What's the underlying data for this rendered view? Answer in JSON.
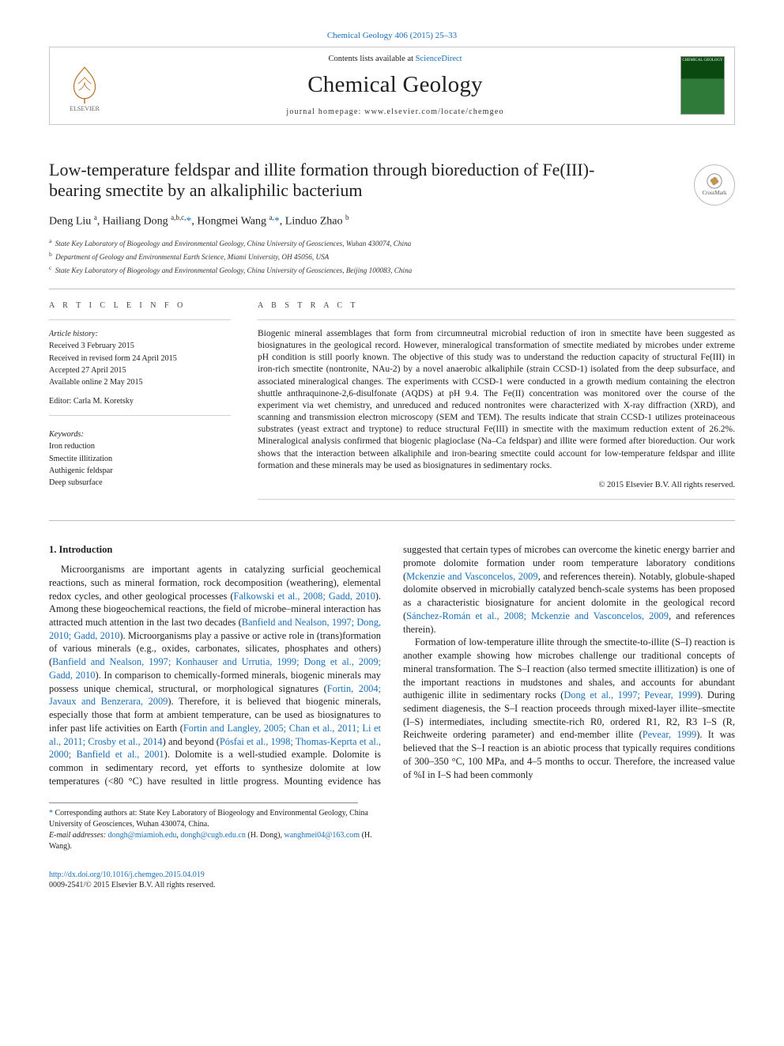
{
  "top_citation": "Chemical Geology 406 (2015) 25–33",
  "masthead": {
    "contents_prefix": "Contents lists available at ",
    "contents_link": "ScienceDirect",
    "journal": "Chemical Geology",
    "homepage_prefix": "journal homepage: ",
    "homepage": "www.elsevier.com/locate/chemgeo",
    "publisher_label": "ELSEVIER",
    "cover_label": "CHEMICAL GEOLOGY"
  },
  "crossmark_label": "CrossMark",
  "title": "Low-temperature feldspar and illite formation through bioreduction of Fe(III)-bearing smectite by an alkaliphilic bacterium",
  "authors_html": "Deng Liu <sup>a</sup>, Hailiang Dong <sup>a,b,c,</sup><span class='star'>*</span>, Hongmei Wang <sup>a,</sup><span class='star'>*</span>, Linduo Zhao <sup>b</sup>",
  "affiliations": [
    {
      "sup": "a",
      "text": "State Key Laboratory of Biogeology and Environmental Geology, China University of Geosciences, Wuhan 430074, China"
    },
    {
      "sup": "b",
      "text": "Department of Geology and Environmental Earth Science, Miami University, OH 45056, USA"
    },
    {
      "sup": "c",
      "text": "State Key Laboratory of Biogeology and Environmental Geology, China University of Geosciences, Beijing 100083, China"
    }
  ],
  "info": {
    "heading": "a r t i c l e   i n f o",
    "history_label": "Article history:",
    "history": [
      "Received 3 February 2015",
      "Received in revised form 24 April 2015",
      "Accepted 27 April 2015",
      "Available online 2 May 2015"
    ],
    "editor_line": "Editor: Carla M. Koretsky",
    "keywords_label": "Keywords:",
    "keywords": [
      "Iron reduction",
      "Smectite illitization",
      "Authigenic feldspar",
      "Deep subsurface"
    ]
  },
  "abstract": {
    "heading": "a b s t r a c t",
    "text": "Biogenic mineral assemblages that form from circumneutral microbial reduction of iron in smectite have been suggested as biosignatures in the geological record. However, mineralogical transformation of smectite mediated by microbes under extreme pH condition is still poorly known. The objective of this study was to understand the reduction capacity of structural Fe(III) in iron-rich smectite (nontronite, NAu-2) by a novel anaerobic alkaliphile (strain CCSD-1) isolated from the deep subsurface, and associated mineralogical changes. The experiments with CCSD-1 were conducted in a growth medium containing the electron shuttle anthraquinone-2,6-disulfonate (AQDS) at pH 9.4. The Fe(II) concentration was monitored over the course of the experiment via wet chemistry, and unreduced and reduced nontronites were characterized with X-ray diffraction (XRD), and scanning and transmission electron microscopy (SEM and TEM). The results indicate that strain CCSD-1 utilizes proteinaceous substrates (yeast extract and tryptone) to reduce structural Fe(III) in smectite with the maximum reduction extent of 26.2%. Mineralogical analysis confirmed that biogenic plagioclase (Na–Ca feldspar) and illite were formed after bioreduction. Our work shows that the interaction between alkaliphile and iron-bearing smectite could account for low-temperature feldspar and illite formation and these minerals may be used as biosignatures in sedimentary rocks.",
    "copyright": "© 2015 Elsevier B.V. All rights reserved."
  },
  "intro_heading": "1. Introduction",
  "intro_p1_a": "Microorganisms are important agents in catalyzing surficial geochemical reactions, such as mineral formation, rock decomposition (weathering), elemental redox cycles, and other geological processes (",
  "intro_p1_link1": "Falkowski et al., 2008; Gadd, 2010",
  "intro_p1_b": "). Among these biogeochemical reactions, the field of microbe–mineral interaction has attracted much attention in the last two decades (",
  "intro_p1_link2": "Banfield and Nealson, 1997; Dong, 2010; Gadd, 2010",
  "intro_p1_c": "). Microorganisms play a passive or active role in (trans)formation of various minerals (e.g., oxides, carbonates, silicates, phosphates and others) (",
  "intro_p1_link3": "Banfield and Nealson, 1997; Konhauser and Urrutia, 1999; Dong et al., 2009; Gadd, 2010",
  "intro_p1_d": "). In comparison to chemically-formed minerals, biogenic minerals may possess unique chemical, structural, or morphological signatures (",
  "intro_p1_link4": "Fortin, 2004; Javaux and Benzerara, 2009",
  "intro_p1_e": "). Therefore, it is believed that biogenic minerals, especially those that form at ambient temperature, can be used as biosignatures to infer past life activities on Earth (",
  "intro_p1_link5": "Fortin and Langley, 2005; Chan et al., 2011; Li et al., 2011; Crosby et al., 2014",
  "intro_p1_f": ") and beyond (",
  "intro_p1_link6": "Pósfai et al., 1998; Thomas-Keprta et al., 2000; Banfield et al., 2001",
  "intro_p1_g": "). Dolomite is a well-studied example. Dolomite is common in sedimentary record, yet efforts to synthesize dolomite at low temperatures (<80 °C) have resulted in little progress. Mounting evidence has suggested that certain types of microbes can overcome the kinetic energy barrier and promote dolomite formation under room temperature laboratory conditions (",
  "intro_p1_link7": "Mckenzie and Vasconcelos, 2009",
  "intro_p1_h": ", and references therein). Notably, globule-shaped dolomite observed in microbially catalyzed bench-scale systems has been proposed as a characteristic biosignature for ancient dolomite in the geological record (",
  "intro_p1_link8": "Sánchez-Román et al., 2008; Mckenzie and Vasconcelos, 2009",
  "intro_p1_i": ", and references therein).",
  "intro_p2_a": "Formation of low-temperature illite through the smectite-to-illite (S–I) reaction is another example showing how microbes challenge our traditional concepts of mineral transformation. The S–I reaction (also termed smectite illitization) is one of the important reactions in mudstones and shales, and accounts for abundant authigenic illite in sedimentary rocks (",
  "intro_p2_link1": "Dong et al., 1997; Pevear, 1999",
  "intro_p2_b": "). During sediment diagenesis, the S–I reaction proceeds through mixed-layer illite–smectite (I–S) intermediates, including smectite-rich R0, ordered R1, R2, R3 I–S (R, Reichweite ordering parameter) and end-member illite (",
  "intro_p2_link2": "Pevear, 1999",
  "intro_p2_c": "). It was believed that the S–I reaction is an abiotic process that typically requires conditions of 300–350 °C, 100 MPa, and 4–5 months to occur. Therefore, the increased value of %I in I–S had been commonly",
  "footnotes": {
    "corr": "Corresponding authors at: State Key Laboratory of Biogeology and Environmental Geology, China University of Geosciences, Wuhan 430074, China.",
    "email_label": "E-mail addresses: ",
    "email1": "dongh@miamioh.edu",
    "email_sep1": ", ",
    "email2": "dongh@cugb.edu.cn",
    "email_who1": " (H. Dong), ",
    "email3": "wanghmei04@163.com",
    "email_who2": " (H. Wang)."
  },
  "footer": {
    "doi": "http://dx.doi.org/10.1016/j.chemgeo.2015.04.019",
    "issn_line": "0009-2541/© 2015 Elsevier B.V. All rights reserved."
  },
  "colors": {
    "link": "#1a6fb8",
    "text": "#202020",
    "rule": "#bdbdbd",
    "cover_dark": "#0a4a10",
    "cover_light": "#2f7a38"
  }
}
